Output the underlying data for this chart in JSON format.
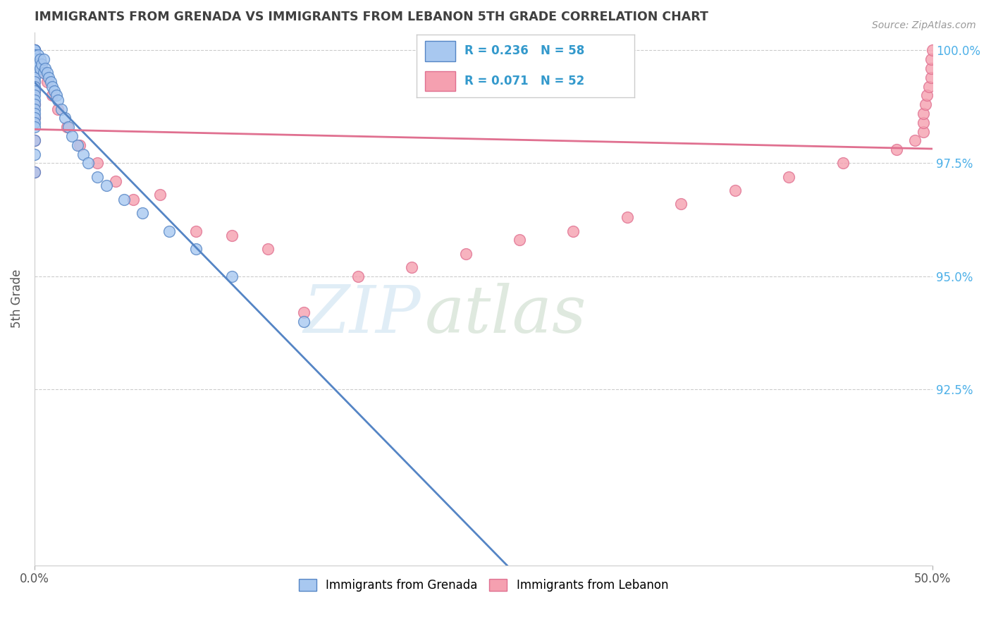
{
  "title": "IMMIGRANTS FROM GRENADA VS IMMIGRANTS FROM LEBANON 5TH GRADE CORRELATION CHART",
  "source": "Source: ZipAtlas.com",
  "ylabel": "5th Grade",
  "xlim": [
    0.0,
    0.5
  ],
  "ylim": [
    0.886,
    1.004
  ],
  "ytick_labels": [
    "100.0%",
    "97.5%",
    "95.0%",
    "92.5%"
  ],
  "ytick_values": [
    1.0,
    0.975,
    0.95,
    0.925
  ],
  "xtick_labels": [
    "0.0%",
    "50.0%"
  ],
  "xtick_values": [
    0.0,
    0.5
  ],
  "legend_r_grenada": "R = 0.236",
  "legend_n_grenada": "N = 58",
  "legend_r_lebanon": "R = 0.071",
  "legend_n_lebanon": "N = 52",
  "color_grenada": "#a8c8f0",
  "color_lebanon": "#f5a0b0",
  "line_color_grenada": "#5585c5",
  "line_color_lebanon": "#e07090",
  "watermark_zip": "ZIP",
  "watermark_atlas": "atlas",
  "background_color": "#ffffff",
  "title_color": "#404040",
  "source_color": "#999999",
  "title_fontsize": 12.5,
  "grenada_x": [
    0.0,
    0.0,
    0.0,
    0.0,
    0.0,
    0.0,
    0.0,
    0.0,
    0.0,
    0.0,
    0.0,
    0.0,
    0.0,
    0.0,
    0.0,
    0.0,
    0.0,
    0.0,
    0.0,
    0.0,
    0.0,
    0.0,
    0.0,
    0.0,
    0.0,
    0.0,
    0.0,
    0.0,
    0.002,
    0.002,
    0.003,
    0.003,
    0.004,
    0.005,
    0.005,
    0.006,
    0.007,
    0.008,
    0.009,
    0.01,
    0.011,
    0.012,
    0.013,
    0.015,
    0.017,
    0.019,
    0.021,
    0.024,
    0.027,
    0.03,
    0.035,
    0.04,
    0.05,
    0.06,
    0.075,
    0.09,
    0.11,
    0.15
  ],
  "grenada_y": [
    1.0,
    1.0,
    1.0,
    1.0,
    1.0,
    0.999,
    0.999,
    0.998,
    0.998,
    0.997,
    0.997,
    0.996,
    0.995,
    0.994,
    0.993,
    0.992,
    0.991,
    0.99,
    0.989,
    0.988,
    0.987,
    0.986,
    0.985,
    0.984,
    0.983,
    0.98,
    0.977,
    0.973,
    0.999,
    0.997,
    0.998,
    0.996,
    0.997,
    0.998,
    0.995,
    0.996,
    0.995,
    0.994,
    0.993,
    0.992,
    0.991,
    0.99,
    0.989,
    0.987,
    0.985,
    0.983,
    0.981,
    0.979,
    0.977,
    0.975,
    0.972,
    0.97,
    0.967,
    0.964,
    0.96,
    0.956,
    0.95,
    0.94
  ],
  "lebanon_x": [
    0.0,
    0.0,
    0.0,
    0.0,
    0.0,
    0.0,
    0.0,
    0.0,
    0.0,
    0.0,
    0.0,
    0.0,
    0.0,
    0.0,
    0.0,
    0.003,
    0.005,
    0.007,
    0.01,
    0.013,
    0.018,
    0.025,
    0.035,
    0.045,
    0.055,
    0.07,
    0.09,
    0.11,
    0.13,
    0.15,
    0.18,
    0.21,
    0.24,
    0.27,
    0.3,
    0.33,
    0.36,
    0.39,
    0.42,
    0.45,
    0.48,
    0.49,
    0.495,
    0.495,
    0.495,
    0.496,
    0.497,
    0.498,
    0.499,
    0.499,
    0.499,
    0.5
  ],
  "lebanon_y": [
    1.0,
    1.0,
    1.0,
    1.0,
    0.999,
    0.998,
    0.997,
    0.996,
    0.995,
    0.993,
    0.991,
    0.988,
    0.985,
    0.98,
    0.973,
    0.997,
    0.995,
    0.993,
    0.99,
    0.987,
    0.983,
    0.979,
    0.975,
    0.971,
    0.967,
    0.968,
    0.96,
    0.959,
    0.956,
    0.942,
    0.95,
    0.952,
    0.955,
    0.958,
    0.96,
    0.963,
    0.966,
    0.969,
    0.972,
    0.975,
    0.978,
    0.98,
    0.982,
    0.984,
    0.986,
    0.988,
    0.99,
    0.992,
    0.994,
    0.996,
    0.998,
    1.0
  ]
}
